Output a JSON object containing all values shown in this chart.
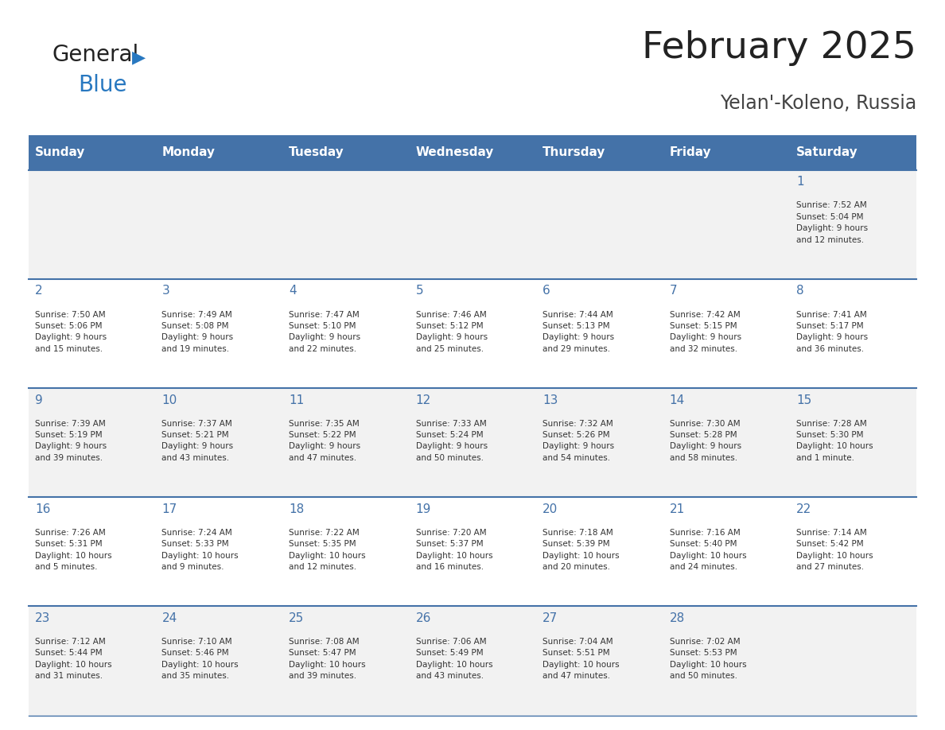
{
  "title": "February 2025",
  "subtitle": "Yelan'-Koleno, Russia",
  "days_of_week": [
    "Sunday",
    "Monday",
    "Tuesday",
    "Wednesday",
    "Thursday",
    "Friday",
    "Saturday"
  ],
  "header_bg": "#4472a8",
  "header_text": "#ffffff",
  "row_bg_light": "#f2f2f2",
  "row_bg_white": "#ffffff",
  "cell_text": "#333333",
  "divider_color": "#4472a8",
  "title_color": "#222222",
  "subtitle_color": "#444444",
  "logo_general_color": "#222222",
  "logo_blue_color": "#2878c0",
  "calendar": [
    [
      {
        "day": "",
        "info": ""
      },
      {
        "day": "",
        "info": ""
      },
      {
        "day": "",
        "info": ""
      },
      {
        "day": "",
        "info": ""
      },
      {
        "day": "",
        "info": ""
      },
      {
        "day": "",
        "info": ""
      },
      {
        "day": "1",
        "info": "Sunrise: 7:52 AM\nSunset: 5:04 PM\nDaylight: 9 hours\nand 12 minutes."
      }
    ],
    [
      {
        "day": "2",
        "info": "Sunrise: 7:50 AM\nSunset: 5:06 PM\nDaylight: 9 hours\nand 15 minutes."
      },
      {
        "day": "3",
        "info": "Sunrise: 7:49 AM\nSunset: 5:08 PM\nDaylight: 9 hours\nand 19 minutes."
      },
      {
        "day": "4",
        "info": "Sunrise: 7:47 AM\nSunset: 5:10 PM\nDaylight: 9 hours\nand 22 minutes."
      },
      {
        "day": "5",
        "info": "Sunrise: 7:46 AM\nSunset: 5:12 PM\nDaylight: 9 hours\nand 25 minutes."
      },
      {
        "day": "6",
        "info": "Sunrise: 7:44 AM\nSunset: 5:13 PM\nDaylight: 9 hours\nand 29 minutes."
      },
      {
        "day": "7",
        "info": "Sunrise: 7:42 AM\nSunset: 5:15 PM\nDaylight: 9 hours\nand 32 minutes."
      },
      {
        "day": "8",
        "info": "Sunrise: 7:41 AM\nSunset: 5:17 PM\nDaylight: 9 hours\nand 36 minutes."
      }
    ],
    [
      {
        "day": "9",
        "info": "Sunrise: 7:39 AM\nSunset: 5:19 PM\nDaylight: 9 hours\nand 39 minutes."
      },
      {
        "day": "10",
        "info": "Sunrise: 7:37 AM\nSunset: 5:21 PM\nDaylight: 9 hours\nand 43 minutes."
      },
      {
        "day": "11",
        "info": "Sunrise: 7:35 AM\nSunset: 5:22 PM\nDaylight: 9 hours\nand 47 minutes."
      },
      {
        "day": "12",
        "info": "Sunrise: 7:33 AM\nSunset: 5:24 PM\nDaylight: 9 hours\nand 50 minutes."
      },
      {
        "day": "13",
        "info": "Sunrise: 7:32 AM\nSunset: 5:26 PM\nDaylight: 9 hours\nand 54 minutes."
      },
      {
        "day": "14",
        "info": "Sunrise: 7:30 AM\nSunset: 5:28 PM\nDaylight: 9 hours\nand 58 minutes."
      },
      {
        "day": "15",
        "info": "Sunrise: 7:28 AM\nSunset: 5:30 PM\nDaylight: 10 hours\nand 1 minute."
      }
    ],
    [
      {
        "day": "16",
        "info": "Sunrise: 7:26 AM\nSunset: 5:31 PM\nDaylight: 10 hours\nand 5 minutes."
      },
      {
        "day": "17",
        "info": "Sunrise: 7:24 AM\nSunset: 5:33 PM\nDaylight: 10 hours\nand 9 minutes."
      },
      {
        "day": "18",
        "info": "Sunrise: 7:22 AM\nSunset: 5:35 PM\nDaylight: 10 hours\nand 12 minutes."
      },
      {
        "day": "19",
        "info": "Sunrise: 7:20 AM\nSunset: 5:37 PM\nDaylight: 10 hours\nand 16 minutes."
      },
      {
        "day": "20",
        "info": "Sunrise: 7:18 AM\nSunset: 5:39 PM\nDaylight: 10 hours\nand 20 minutes."
      },
      {
        "day": "21",
        "info": "Sunrise: 7:16 AM\nSunset: 5:40 PM\nDaylight: 10 hours\nand 24 minutes."
      },
      {
        "day": "22",
        "info": "Sunrise: 7:14 AM\nSunset: 5:42 PM\nDaylight: 10 hours\nand 27 minutes."
      }
    ],
    [
      {
        "day": "23",
        "info": "Sunrise: 7:12 AM\nSunset: 5:44 PM\nDaylight: 10 hours\nand 31 minutes."
      },
      {
        "day": "24",
        "info": "Sunrise: 7:10 AM\nSunset: 5:46 PM\nDaylight: 10 hours\nand 35 minutes."
      },
      {
        "day": "25",
        "info": "Sunrise: 7:08 AM\nSunset: 5:47 PM\nDaylight: 10 hours\nand 39 minutes."
      },
      {
        "day": "26",
        "info": "Sunrise: 7:06 AM\nSunset: 5:49 PM\nDaylight: 10 hours\nand 43 minutes."
      },
      {
        "day": "27",
        "info": "Sunrise: 7:04 AM\nSunset: 5:51 PM\nDaylight: 10 hours\nand 47 minutes."
      },
      {
        "day": "28",
        "info": "Sunrise: 7:02 AM\nSunset: 5:53 PM\nDaylight: 10 hours\nand 50 minutes."
      },
      {
        "day": "",
        "info": ""
      }
    ]
  ],
  "figsize": [
    11.88,
    9.18
  ],
  "dpi": 100
}
